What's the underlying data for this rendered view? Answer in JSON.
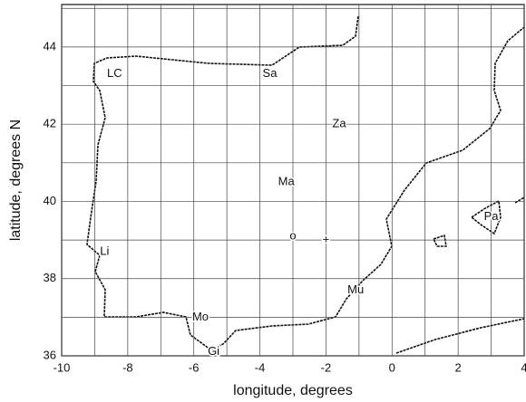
{
  "chart_data": {
    "type": "map",
    "xlabel": "longitude, degrees",
    "ylabel": "latitude, degrees N",
    "xlim": [
      -10,
      4
    ],
    "ylim": [
      36,
      45.1
    ],
    "xticks": [
      -10,
      -8,
      -6,
      -4,
      -2,
      0,
      2,
      4
    ],
    "yticks": [
      36,
      38,
      40,
      42,
      44
    ],
    "xgrid": [
      -9,
      -7,
      -5,
      -3,
      -1,
      1,
      3
    ],
    "ygrid": [
      37,
      39,
      41,
      43,
      45
    ],
    "grid": true,
    "places": [
      {
        "label": "LC",
        "x": -8.4,
        "y": 43.3
      },
      {
        "label": "Sa",
        "x": -3.7,
        "y": 43.3
      },
      {
        "label": "Za",
        "x": -1.6,
        "y": 42.0
      },
      {
        "label": "Ma",
        "x": -3.2,
        "y": 40.5
      },
      {
        "label": "o",
        "x": -3.0,
        "y": 39.1
      },
      {
        "label": "+",
        "x": -2.0,
        "y": 39.0
      },
      {
        "label": "Li",
        "x": -8.7,
        "y": 38.7
      },
      {
        "label": "Mu",
        "x": -1.1,
        "y": 37.7
      },
      {
        "label": "Mo",
        "x": -5.8,
        "y": 37.0
      },
      {
        "label": "Gi",
        "x": -5.4,
        "y": 36.1
      },
      {
        "label": "Pa",
        "x": 3.0,
        "y": 39.6
      }
    ]
  }
}
